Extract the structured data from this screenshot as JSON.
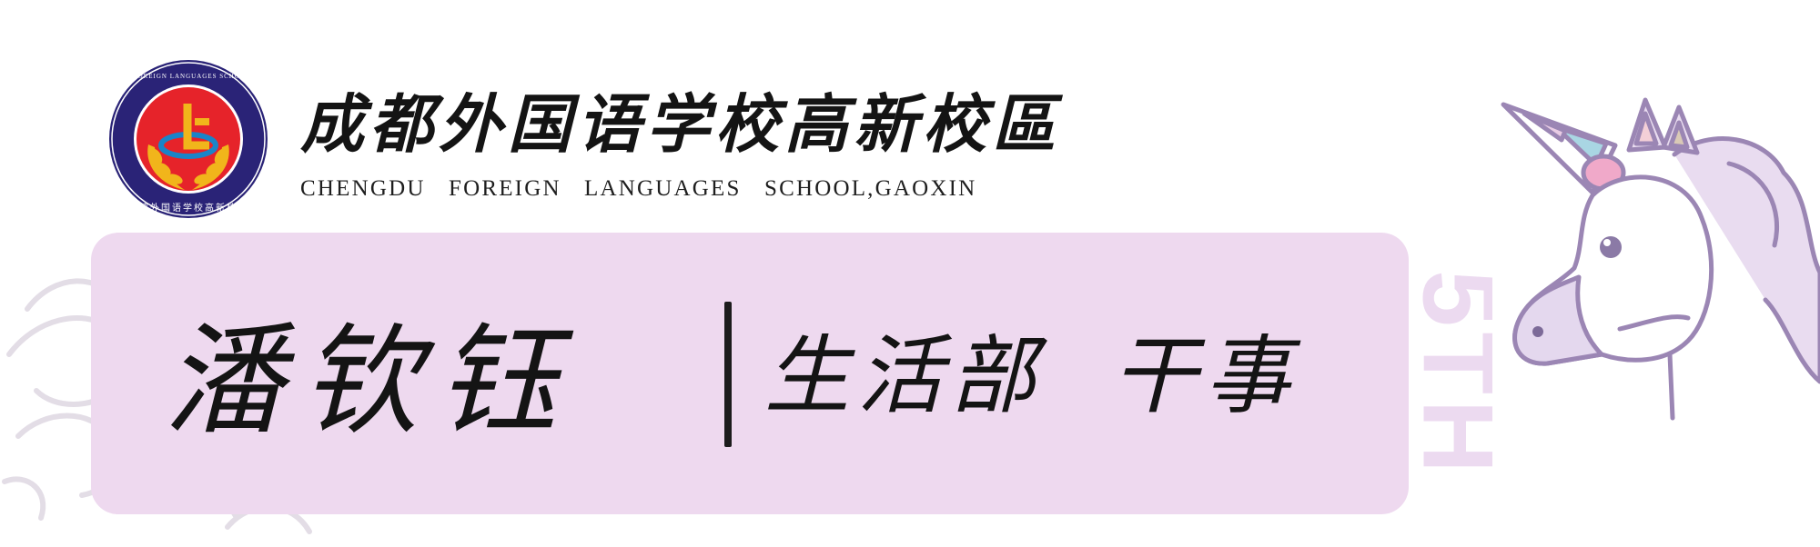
{
  "logo": {
    "ring_text": "CHENGDU FOREIGN LANGUAGES SCHOOL GAOXIN",
    "ring_text_cn": "成都外国语学校高新校区",
    "colors": {
      "ring": "#2a2377",
      "center": "#e6232a",
      "wreath": "#f1b51b",
      "emblem": "#1a84c8"
    }
  },
  "school": {
    "name_cn": "成都外国语学校高新校區",
    "name_en": "CHENGDU   FOREIGN   LANGUAGES   SCHOOL,GAOXIN"
  },
  "card": {
    "name": "潘钦钰",
    "role": "生活部  干事",
    "color": "#eed9ef"
  },
  "decoration": {
    "vertical_text": "5TH",
    "unicorn_colors": {
      "outline": "#9b86b4",
      "fill": "#e9dcf0",
      "horn_pink": "#f0a9c9",
      "horn_blue": "#a9d6e3"
    }
  }
}
